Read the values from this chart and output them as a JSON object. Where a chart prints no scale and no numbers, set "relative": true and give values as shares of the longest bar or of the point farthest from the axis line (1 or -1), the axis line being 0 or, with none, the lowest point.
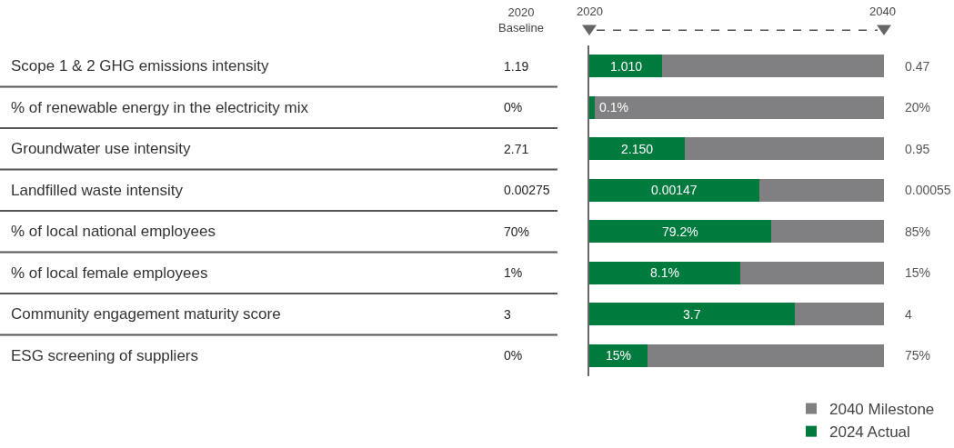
{
  "chart_data": {
    "type": "bar",
    "orientation": "horizontal",
    "stacked": true,
    "relative": true,
    "legend": "bottom right",
    "categories": [
      "Scope 1 & 2 GHG emissions intensity",
      "% of renewable energy in the electricity mix",
      "Groundwater use intensity",
      "Landfilled waste intensity",
      "% of local national employees",
      "% of local female employees",
      "Community engagement maturity score",
      "ESG screening of suppliers"
    ],
    "series": [
      {
        "name": "2024 Actual",
        "color": "#007a3d",
        "values": [
          0.247,
          0.019,
          0.324,
          0.577,
          0.617,
          0.512,
          0.698,
          0.198
        ]
      },
      {
        "name": "2040 Milestone",
        "color": "#808083",
        "values": [
          0.753,
          0.981,
          0.676,
          0.423,
          0.383,
          0.488,
          0.302,
          0.802
        ]
      }
    ],
    "annotations": [
      "2020\nBaseline",
      "2020",
      "2040",
      "1.19",
      "0%",
      "2.71",
      "0.00275",
      "70%",
      "1%",
      "3",
      "0%",
      "1.010",
      "0.1%",
      "2.150",
      "0.00147",
      "79.2%",
      "8.1%",
      "3.7",
      "15%",
      "0.47",
      "20%",
      "0.95",
      "0.00055",
      "85%",
      "15%",
      "4",
      "75%"
    ]
  }
}
